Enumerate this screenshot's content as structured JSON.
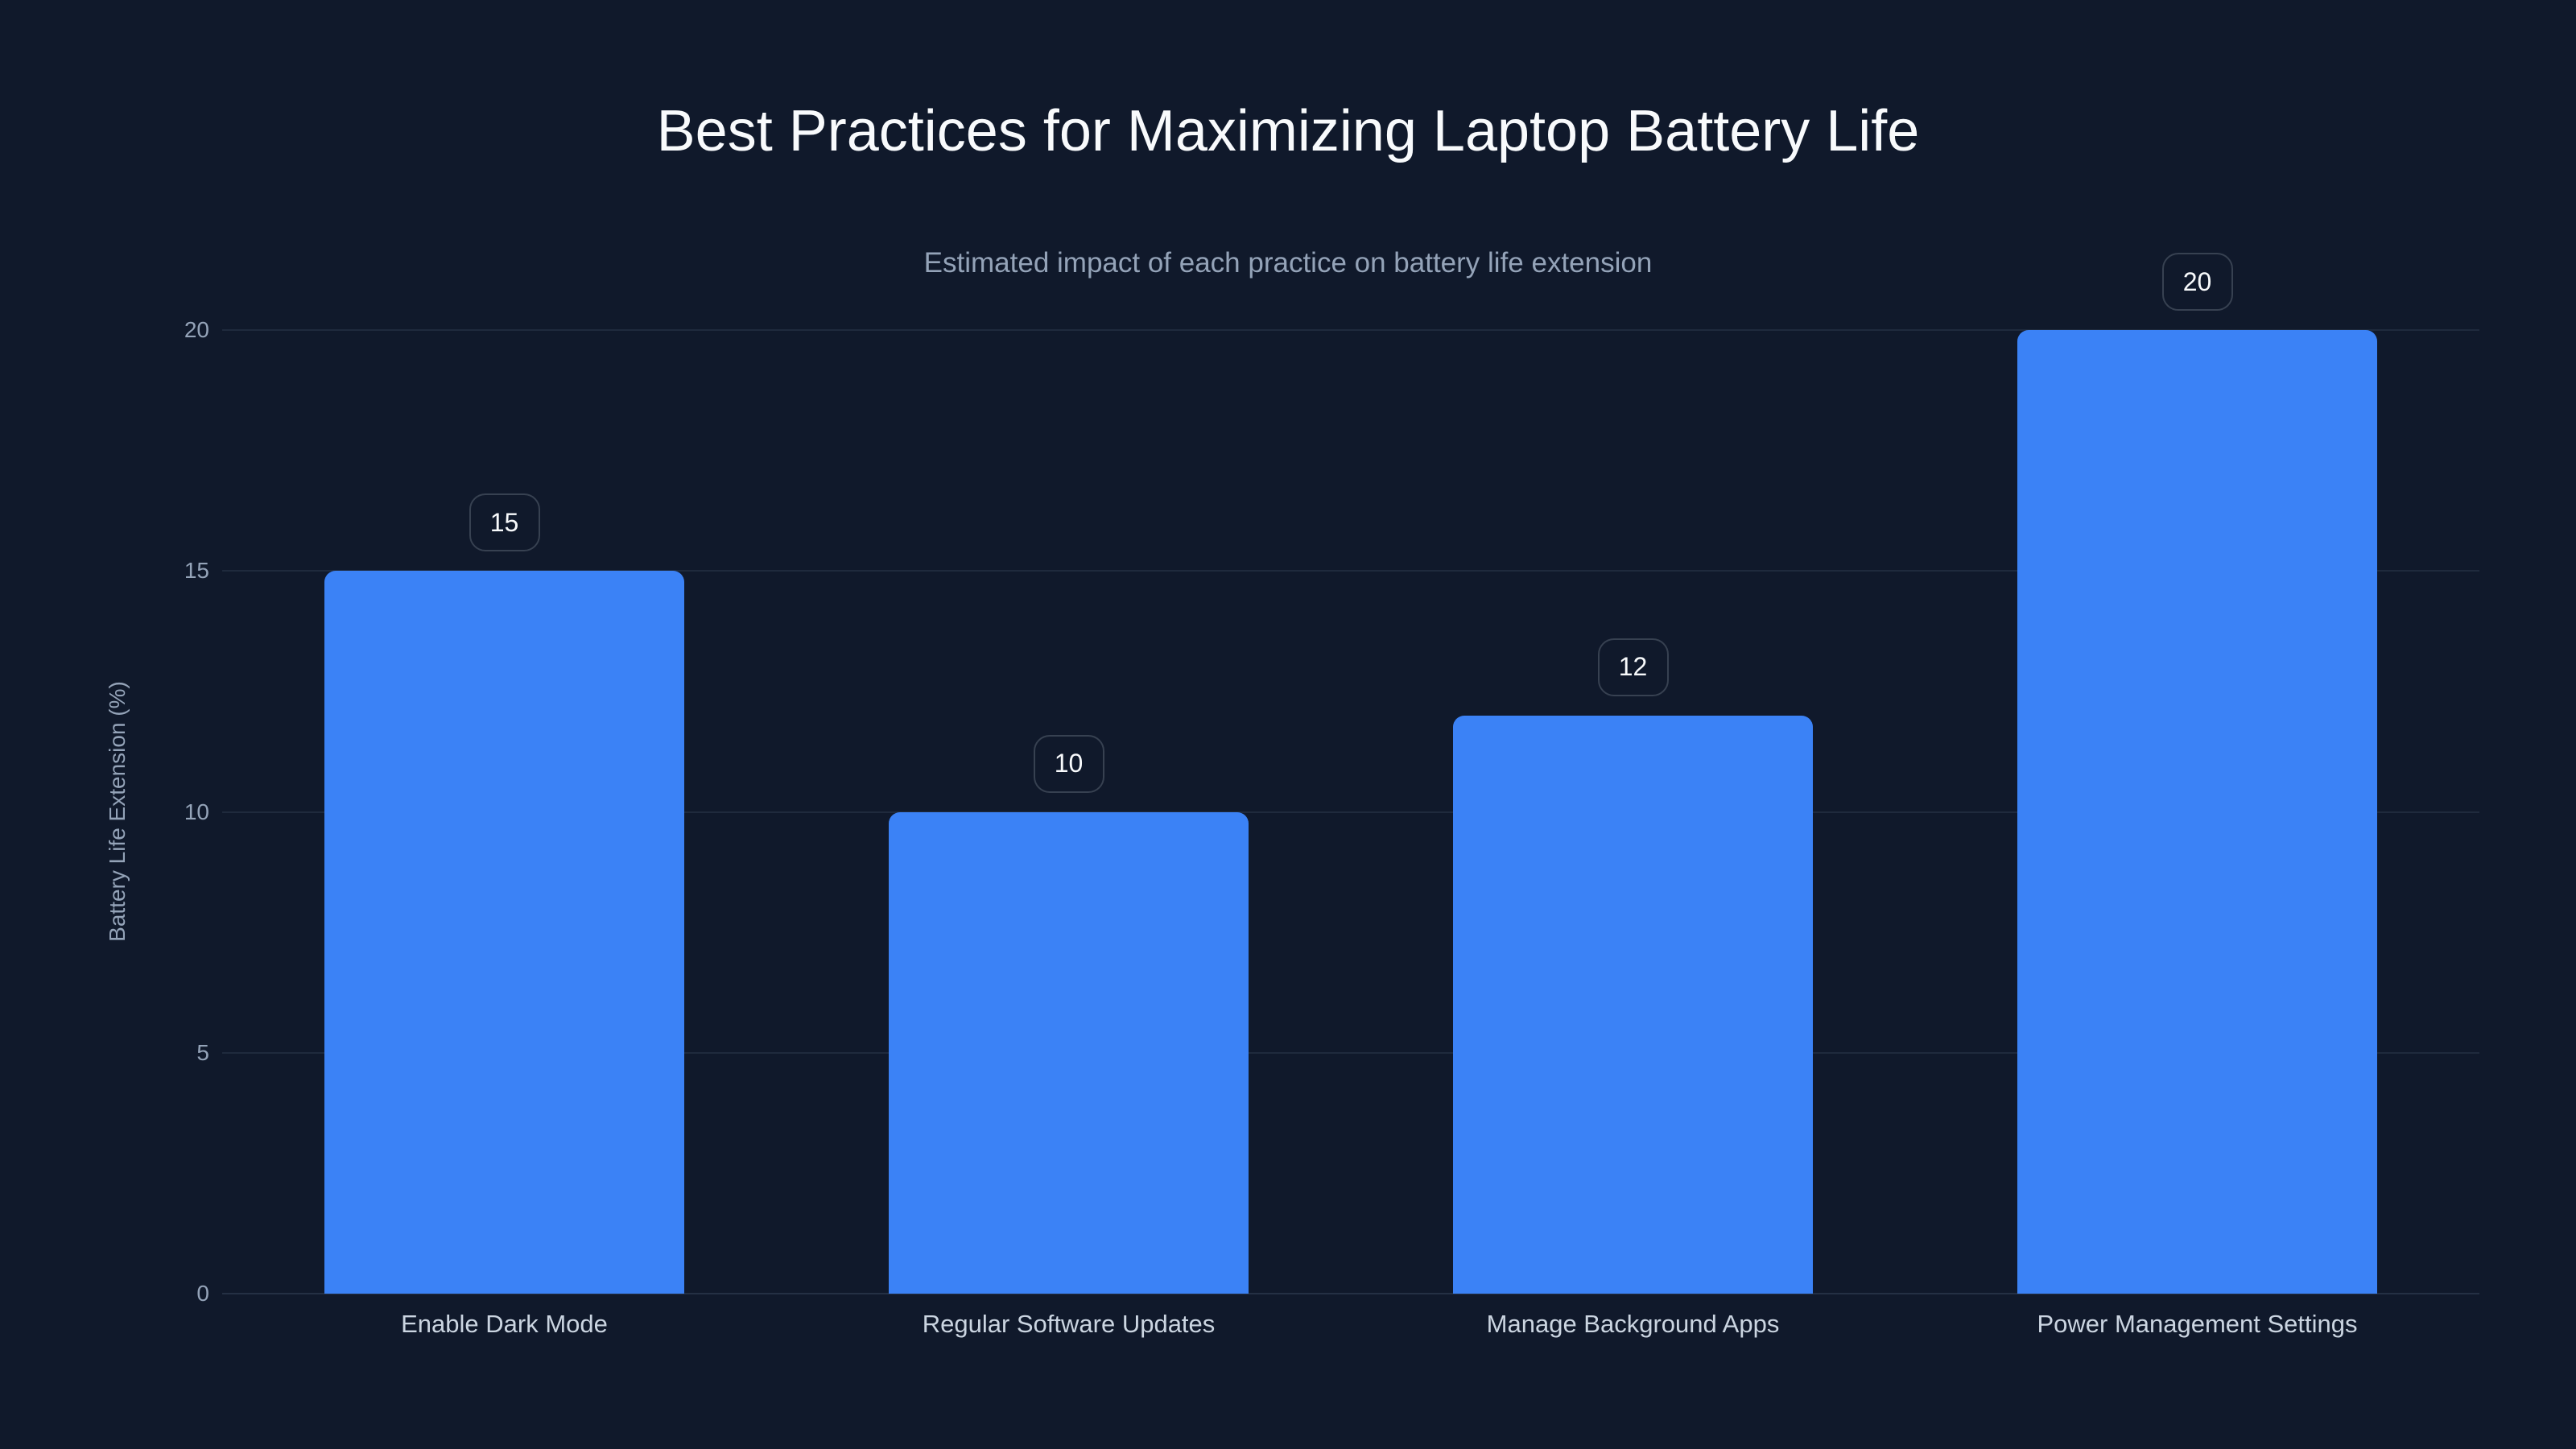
{
  "chart_data": {
    "type": "bar",
    "title": "Best Practices for Maximizing Laptop Battery Life",
    "subtitle": "Estimated impact of each practice on battery life extension",
    "xlabel": "",
    "ylabel": "Battery Life Extension (%)",
    "categories": [
      "Enable Dark Mode",
      "Regular Software Updates",
      "Manage Background Apps",
      "Power Management Settings"
    ],
    "values": [
      15,
      10,
      12,
      20
    ],
    "ylim": [
      0,
      20
    ],
    "yticks": [
      "0",
      "5",
      "10",
      "15",
      "20"
    ],
    "grid": true,
    "legend": null,
    "data_labels": [
      "15",
      "10",
      "12",
      "20"
    ],
    "colors": {
      "bar": "#3b82f6",
      "background": "#10192b",
      "grid": "#1f2a3d"
    }
  }
}
